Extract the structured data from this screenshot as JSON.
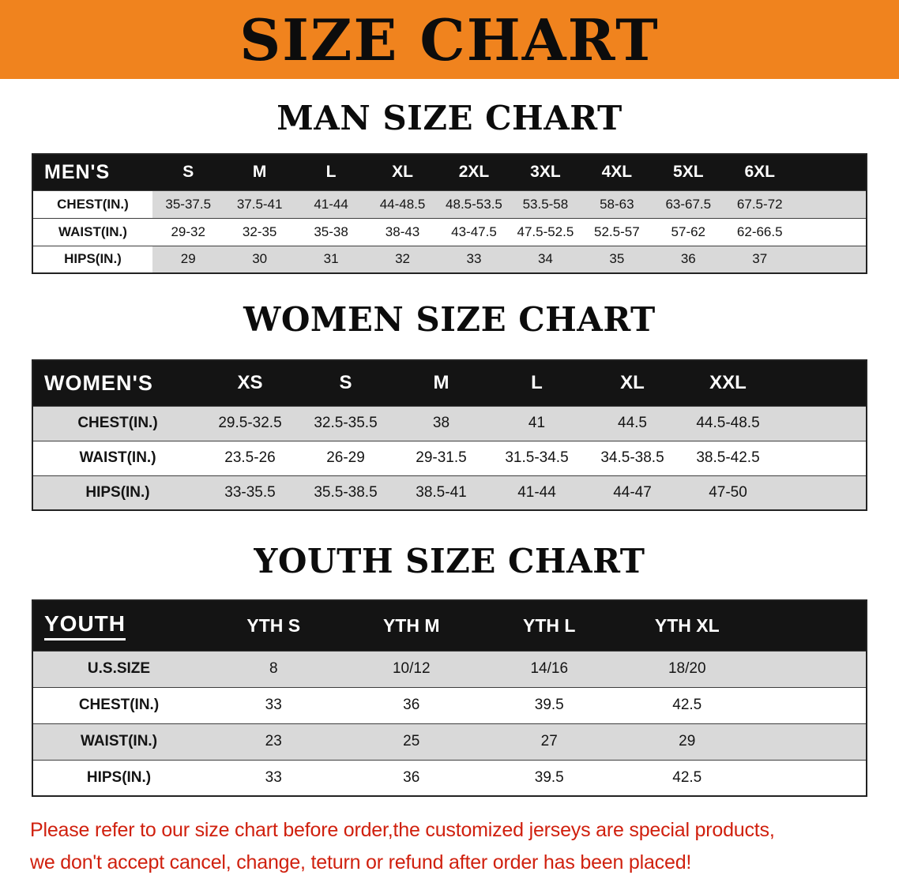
{
  "banner": {
    "title": "SIZE CHART",
    "bg_color": "#F0831E",
    "text_color": "#0C0C0C"
  },
  "sections": [
    {
      "heading": "MAN SIZE CHART",
      "table": {
        "header": [
          "MEN'S",
          "S",
          "M",
          "L",
          "XL",
          "2XL",
          "3XL",
          "4XL",
          "5XL",
          "6XL"
        ],
        "rows": [
          [
            "CHEST(IN.)",
            "35-37.5",
            "37.5-41",
            "41-44",
            "44-48.5",
            "48.5-53.5",
            "53.5-58",
            "58-63",
            "63-67.5",
            "67.5-72"
          ],
          [
            "WAIST(IN.)",
            "29-32",
            "32-35",
            "35-38",
            "38-43",
            "43-47.5",
            "47.5-52.5",
            "52.5-57",
            "57-62",
            "62-66.5"
          ],
          [
            "HIPS(IN.)",
            "29",
            "30",
            "31",
            "32",
            "33",
            "34",
            "35",
            "36",
            "37"
          ]
        ]
      }
    },
    {
      "heading": "WOMEN SIZE CHART",
      "table": {
        "header": [
          "WOMEN'S",
          "XS",
          "S",
          "M",
          "L",
          "XL",
          "XXL"
        ],
        "rows": [
          [
            "CHEST(IN.)",
            "29.5-32.5",
            "32.5-35.5",
            "38",
            "41",
            "44.5",
            "44.5-48.5"
          ],
          [
            "WAIST(IN.)",
            "23.5-26",
            "26-29",
            "29-31.5",
            "31.5-34.5",
            "34.5-38.5",
            "38.5-42.5"
          ],
          [
            "HIPS(IN.)",
            "33-35.5",
            "35.5-38.5",
            "38.5-41",
            "41-44",
            "44-47",
            "47-50"
          ]
        ]
      }
    },
    {
      "heading": "YOUTH SIZE CHART",
      "table": {
        "header": [
          "YOUTH",
          "YTH S",
          "YTH M",
          "YTH L",
          "YTH XL"
        ],
        "rows": [
          [
            "U.S.SIZE",
            "8",
            "10/12",
            "14/16",
            "18/20"
          ],
          [
            "CHEST(IN.)",
            "33",
            "36",
            "39.5",
            "42.5"
          ],
          [
            "WAIST(IN.)",
            "23",
            "25",
            "27",
            "29"
          ],
          [
            "HIPS(IN.)",
            "33",
            "36",
            "39.5",
            "42.5"
          ]
        ]
      }
    }
  ],
  "disclaimer": {
    "color": "#D0200E",
    "line1": "Please refer to our size chart before order,the customized jerseys are special products,",
    "line2": "we don't accept cancel, change, teturn or refund after order has been placed!"
  },
  "colors": {
    "table_header_bg": "#141414",
    "row_stripe": "#D9D9D9"
  }
}
